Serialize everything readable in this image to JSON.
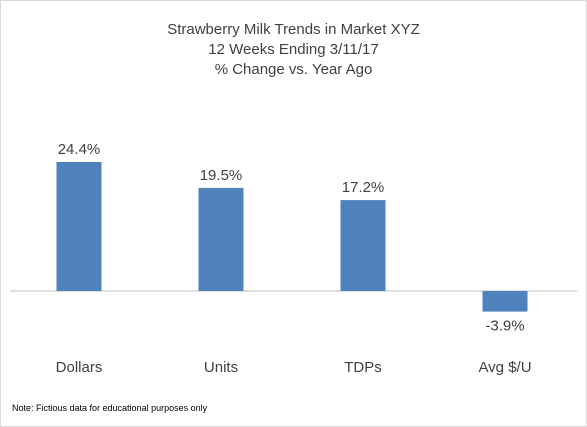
{
  "chart_data": {
    "type": "bar",
    "title": "Strawberry Milk Trends in Market XYZ",
    "subtitle_lines": [
      "12 Weeks Ending 3/11/17",
      "% Change vs. Year Ago"
    ],
    "categories": [
      "Dollars",
      "Units",
      "TDPs",
      "Avg $/U"
    ],
    "values": [
      24.4,
      19.5,
      17.2,
      -3.9
    ],
    "data_labels": [
      "24.4%",
      "19.5%",
      "17.2%",
      "-3.9%"
    ],
    "xlabel": "",
    "ylabel": "",
    "ylim": [
      -5,
      26
    ],
    "grid": false,
    "legend": "none",
    "bar_color": "#4f81bd",
    "axis_color": "#bfbfbf"
  },
  "footnote": "Note: Fictious data for educational purposes only"
}
